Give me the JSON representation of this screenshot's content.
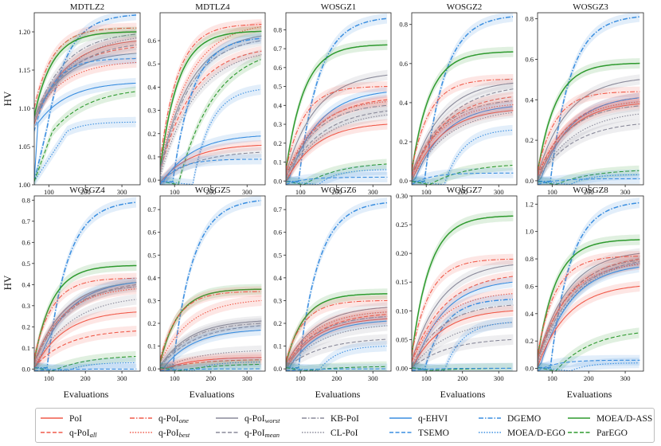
{
  "figure": {
    "ylabel": "HV",
    "xlabel": "Evaluations",
    "legend": [
      {
        "key": "poi",
        "label": "PoI",
        "color": "#f05a4a",
        "dash": "solid"
      },
      {
        "key": "qpoi_all",
        "label": "q-PoI",
        "sub": "all",
        "color": "#f05a4a",
        "dash": "dash"
      },
      {
        "key": "qpoi_one",
        "label": "q-PoI",
        "sub": "one",
        "color": "#f05a4a",
        "dash": "dashdot"
      },
      {
        "key": "qpoi_best",
        "label": "q-PoI",
        "sub": "best",
        "color": "#f05a4a",
        "dash": "dot"
      },
      {
        "key": "qpoi_worst",
        "label": "q-PoI",
        "sub": "worst",
        "color": "#8a8a9a",
        "dash": "solid"
      },
      {
        "key": "qpoi_mean",
        "label": "q-PoI",
        "sub": "mean",
        "color": "#8a8a9a",
        "dash": "dash"
      },
      {
        "key": "kb_poi",
        "label": "KB-PoI",
        "color": "#8a8a9a",
        "dash": "dashdot"
      },
      {
        "key": "cl_poi",
        "label": "CL-PoI",
        "color": "#8a8a9a",
        "dash": "dot"
      },
      {
        "key": "qehvi",
        "label": "q-EHVI",
        "color": "#3a8ee0",
        "dash": "solid"
      },
      {
        "key": "tsemo",
        "label": "TSEMO",
        "color": "#3a8ee0",
        "dash": "dash"
      },
      {
        "key": "dgemo",
        "label": "DGEMO",
        "color": "#3a8ee0",
        "dash": "dashdot"
      },
      {
        "key": "moead_ego",
        "label": "MOEA/D-EGO",
        "color": "#3a8ee0",
        "dash": "dot"
      },
      {
        "key": "moead_ass",
        "label": "MOEA/D-ASS",
        "color": "#2e9a2e",
        "dash": "solid"
      },
      {
        "key": "parego",
        "label": "ParEGO",
        "color": "#2e9a2e",
        "dash": "dash"
      }
    ]
  },
  "chart_data": [
    {
      "type": "line",
      "title": "MDTLZ2",
      "xlim": [
        60,
        350
      ],
      "xticks": [
        100,
        200,
        300
      ],
      "ylim": [
        1.0,
        1.225
      ],
      "yticks": [
        "1.00",
        "1.05",
        "1.10",
        "1.15",
        "1.20"
      ],
      "series": {
        "dgemo": 1.222,
        "poi": 1.188,
        "qpoi_all": 1.18,
        "qpoi_one": 1.205,
        "qpoi_best": 1.16,
        "qpoi_worst": 1.172,
        "qpoi_mean": 1.183,
        "kb_poi": 1.197,
        "cl_poi": 1.192,
        "qehvi": 1.133,
        "tsemo": 1.165,
        "moead_ego": 1.082,
        "moead_ass": 1.2,
        "parego": 1.122
      }
    },
    {
      "type": "line",
      "title": "MDTLZ4",
      "xlim": [
        60,
        350
      ],
      "xticks": [
        100,
        200,
        300
      ],
      "ylim": [
        -0.02,
        0.72
      ],
      "yticks": [
        "0.0",
        "0.1",
        "0.2",
        "0.3",
        "0.4",
        "0.5",
        "0.6"
      ],
      "series": {
        "qpoi_one": 0.67,
        "qpoi_best": 0.66,
        "qpoi_all": 0.555,
        "kb_poi": 0.6,
        "moead_ass": 0.64,
        "parego": 0.52,
        "qpoi_worst": 0.62,
        "cl_poi": 0.54,
        "dgemo": 0.61,
        "moead_ego": 0.39,
        "poi": 0.15,
        "qehvi": 0.19,
        "qpoi_mean": 0.12,
        "tsemo": 0.09
      }
    },
    {
      "type": "line",
      "title": "WOSGZ1",
      "xlim": [
        60,
        350
      ],
      "xticks": [
        100,
        200,
        300
      ],
      "ylim": [
        -0.02,
        0.89
      ],
      "yticks": [
        "0.0",
        "0.1",
        "0.2",
        "0.3",
        "0.4",
        "0.5",
        "0.6",
        "0.7",
        "0.8"
      ],
      "series": {
        "dgemo": 0.86,
        "moead_ass": 0.72,
        "qpoi_worst": 0.56,
        "qpoi_one": 0.5,
        "qpoi_all": 0.43,
        "qehvi": 0.47,
        "qpoi_best": 0.42,
        "kb_poi": 0.4,
        "qpoi_mean": 0.37,
        "cl_poi": 0.35,
        "poi": 0.3,
        "parego": 0.09,
        "moead_ego": 0.06,
        "tsemo": 0.02
      }
    },
    {
      "type": "line",
      "title": "WOSGZ2",
      "xlim": [
        60,
        350
      ],
      "xticks": [
        100,
        200,
        300
      ],
      "ylim": [
        -0.02,
        0.86
      ],
      "yticks": [
        "0.0",
        "0.2",
        "0.4",
        "0.6",
        "0.8"
      ],
      "series": {
        "dgemo": 0.84,
        "moead_ass": 0.66,
        "qpoi_one": 0.52,
        "qpoi_worst": 0.5,
        "qpoi_mean": 0.47,
        "qpoi_all": 0.43,
        "kb_poi": 0.41,
        "qpoi_best": 0.39,
        "qehvi": 0.38,
        "poi": 0.36,
        "cl_poi": 0.35,
        "moead_ego": 0.26,
        "parego": 0.08,
        "tsemo": 0.04
      }
    },
    {
      "type": "line",
      "title": "WOSGZ3",
      "xlim": [
        60,
        350
      ],
      "xticks": [
        100,
        200,
        300
      ],
      "ylim": [
        -0.02,
        0.83
      ],
      "yticks": [
        "0.0",
        "0.2",
        "0.4",
        "0.6",
        "0.8"
      ],
      "series": {
        "dgemo": 0.81,
        "moead_ass": 0.58,
        "qpoi_worst": 0.5,
        "qpoi_one": 0.44,
        "qpoi_all": 0.41,
        "qehvi": 0.41,
        "qpoi_best": 0.39,
        "poi": 0.38,
        "kb_poi": 0.37,
        "cl_poi": 0.33,
        "qpoi_mean": 0.28,
        "parego": 0.05,
        "moead_ego": 0.03,
        "tsemo": 0.01
      }
    },
    {
      "type": "line",
      "title": "WOSGZ4",
      "xlim": [
        60,
        350
      ],
      "xticks": [
        100,
        200,
        300
      ],
      "ylim": [
        -0.01,
        0.82
      ],
      "yticks": [
        "0.0",
        "0.1",
        "0.2",
        "0.3",
        "0.4",
        "0.5",
        "0.6",
        "0.7",
        "0.8"
      ],
      "series": {
        "dgemo": 0.79,
        "moead_ass": 0.49,
        "qpoi_one": 0.43,
        "qpoi_worst": 0.41,
        "qehvi": 0.41,
        "qpoi_mean": 0.4,
        "kb_poi": 0.39,
        "qpoi_best": 0.38,
        "cl_poi": 0.33,
        "poi": 0.27,
        "qpoi_all": 0.18,
        "parego": 0.06,
        "moead_ego": 0.03,
        "tsemo": 0.0
      }
    },
    {
      "type": "line",
      "title": "WOSGZ5",
      "xlim": [
        60,
        350
      ],
      "xticks": [
        100,
        200,
        300
      ],
      "ylim": [
        -0.01,
        0.76
      ],
      "yticks": [
        "0.0",
        "0.1",
        "0.2",
        "0.3",
        "0.4",
        "0.5",
        "0.6",
        "0.7"
      ],
      "series": {
        "dgemo": 0.74,
        "moead_ass": 0.35,
        "qpoi_one": 0.34,
        "qpoi_best": 0.3,
        "qpoi_worst": 0.21,
        "kb_poi": 0.2,
        "qpoi_mean": 0.19,
        "qehvi": 0.17,
        "cl_poi": 0.08,
        "poi": 0.05,
        "qpoi_all": 0.04,
        "moead_ego": 0.03,
        "parego": 0.02,
        "tsemo": 0.0
      }
    },
    {
      "type": "line",
      "title": "WOSGZ6",
      "xlim": [
        60,
        350
      ],
      "xticks": [
        100,
        200,
        300
      ],
      "ylim": [
        -0.01,
        0.76
      ],
      "yticks": [
        "0.0",
        "0.1",
        "0.2",
        "0.3",
        "0.4",
        "0.5",
        "0.6",
        "0.7"
      ],
      "series": {
        "dgemo": 0.73,
        "moead_ass": 0.33,
        "qpoi_one": 0.3,
        "qpoi_worst": 0.27,
        "qpoi_best": 0.25,
        "qpoi_all": 0.24,
        "kb_poi": 0.23,
        "poi": 0.22,
        "qehvi": 0.21,
        "cl_poi": 0.19,
        "qpoi_mean": 0.13,
        "moead_ego": 0.1,
        "parego": 0.01,
        "tsemo": 0.0
      }
    },
    {
      "type": "line",
      "title": "WOSGZ7",
      "xlim": [
        60,
        350
      ],
      "xticks": [
        100,
        200,
        300
      ],
      "ylim": [
        -0.005,
        0.3
      ],
      "yticks": [
        "0.00",
        "0.05",
        "0.10",
        "0.15",
        "0.20",
        "0.25",
        "0.30"
      ],
      "series": {
        "moead_ass": 0.265,
        "qpoi_one": 0.19,
        "qpoi_worst": 0.18,
        "qpoi_all": 0.16,
        "qehvi": 0.15,
        "qpoi_best": 0.13,
        "dgemo": 0.12,
        "kb_poi": 0.11,
        "poi": 0.1,
        "cl_poi": 0.08,
        "qpoi_mean": 0.05,
        "moead_ego": 0.08,
        "parego": 0.0,
        "tsemo": 0.0
      }
    },
    {
      "type": "line",
      "title": "WOSGZ8",
      "xlim": [
        60,
        350
      ],
      "xticks": [
        100,
        200,
        300
      ],
      "ylim": [
        -0.02,
        1.26
      ],
      "yticks": [
        "0.0",
        "0.2",
        "0.4",
        "0.6",
        "0.8",
        "1.0",
        "1.2"
      ],
      "series": {
        "dgemo": 1.21,
        "moead_ass": 0.94,
        "qpoi_worst": 0.84,
        "qpoi_one": 0.82,
        "qpoi_all": 0.8,
        "kb_poi": 0.79,
        "qpoi_mean": 0.78,
        "cl_poi": 0.77,
        "qpoi_best": 0.76,
        "qehvi": 0.74,
        "poi": 0.6,
        "parego": 0.26,
        "tsemo": 0.06,
        "moead_ego": 0.04
      }
    }
  ]
}
